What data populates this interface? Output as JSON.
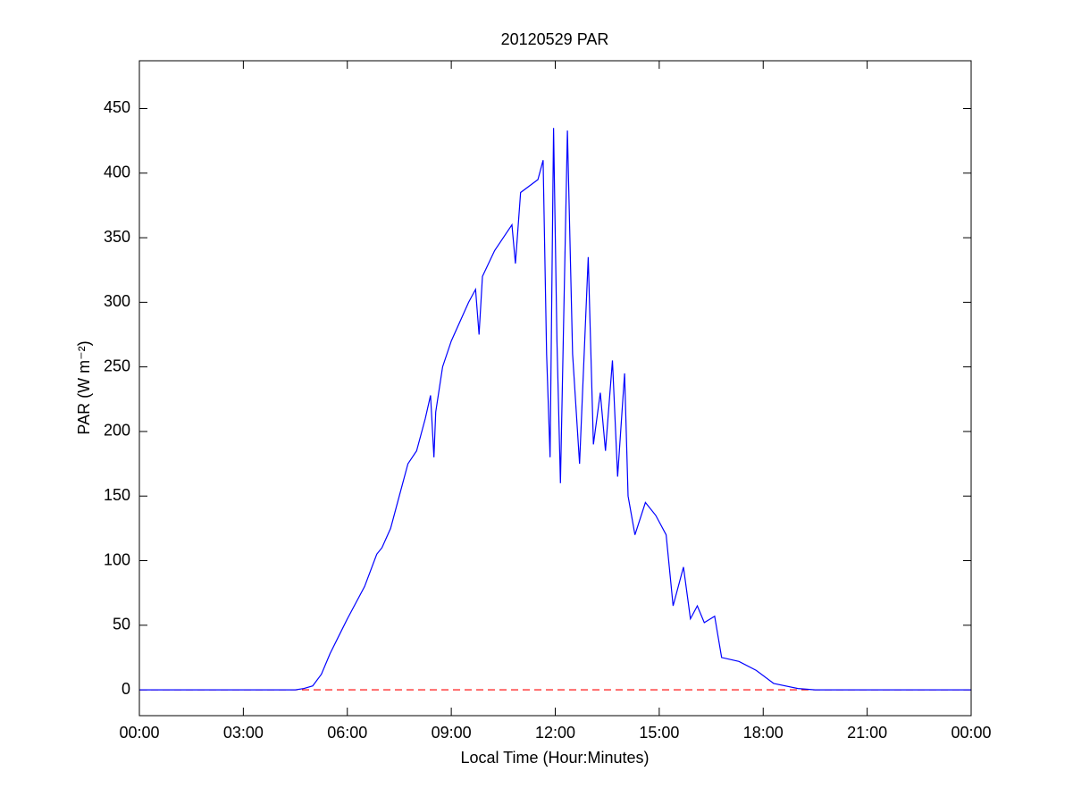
{
  "chart_data": {
    "type": "line",
    "title": "20120529 PAR",
    "x_label": "Local Time (Hour:Minutes)",
    "y_label": "PAR (W m⁻²)",
    "x": [
      0,
      4.5,
      4.75,
      5.0,
      5.25,
      5.5,
      6.0,
      6.5,
      6.85,
      7.0,
      7.25,
      7.5,
      7.75,
      8.0,
      8.25,
      8.4,
      8.5,
      8.55,
      8.75,
      9.0,
      9.5,
      9.7,
      9.8,
      9.9,
      10.25,
      10.5,
      10.75,
      10.85,
      11.0,
      11.5,
      11.65,
      11.75,
      11.85,
      11.95,
      12.05,
      12.15,
      12.35,
      12.5,
      12.7,
      12.95,
      13.1,
      13.3,
      13.45,
      13.65,
      13.8,
      14.0,
      14.1,
      14.3,
      14.6,
      14.9,
      15.2,
      15.4,
      15.7,
      15.9,
      16.1,
      16.3,
      16.6,
      16.8,
      17.3,
      17.8,
      18.3,
      19.0,
      19.5,
      24
    ],
    "series": [
      {
        "name": "PAR",
        "color": "#0000ff",
        "values": [
          0,
          0,
          1,
          3,
          12,
          28,
          55,
          80,
          105,
          110,
          125,
          150,
          175,
          185,
          210,
          228,
          180,
          215,
          250,
          270,
          300,
          310,
          275,
          320,
          340,
          350,
          360,
          330,
          385,
          395,
          410,
          260,
          180,
          435,
          270,
          160,
          433,
          260,
          175,
          335,
          190,
          230,
          185,
          255,
          165,
          245,
          150,
          120,
          145,
          135,
          120,
          65,
          95,
          55,
          65,
          52,
          57,
          25,
          22,
          15,
          5,
          1,
          0,
          0
        ]
      }
    ],
    "reference_line": {
      "value": 0,
      "color": "#ff0000",
      "style": "dashed"
    },
    "xlim": [
      0,
      24
    ],
    "xticks": [
      {
        "value": 0,
        "label": "00:00"
      },
      {
        "value": 3,
        "label": "03:00"
      },
      {
        "value": 6,
        "label": "06:00"
      },
      {
        "value": 9,
        "label": "09:00"
      },
      {
        "value": 12,
        "label": "12:00"
      },
      {
        "value": 15,
        "label": "15:00"
      },
      {
        "value": 18,
        "label": "18:00"
      },
      {
        "value": 21,
        "label": "21:00"
      },
      {
        "value": 24,
        "label": "00:00"
      }
    ],
    "ylim": [
      -20,
      487
    ],
    "yticks": [
      0,
      50,
      100,
      150,
      200,
      250,
      300,
      350,
      400,
      450
    ],
    "grid": false
  }
}
